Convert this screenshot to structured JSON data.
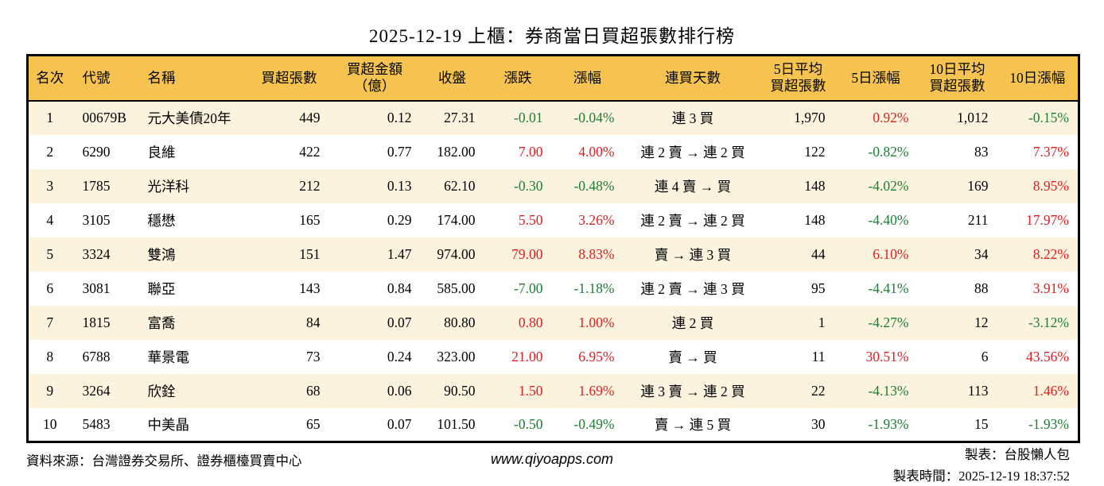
{
  "chart_data": {
    "type": "table",
    "title": "2025-12-19 上櫃：券商當日買超張數排行榜",
    "columns": [
      {
        "key": "rank",
        "label": "名次"
      },
      {
        "key": "code",
        "label": "代號"
      },
      {
        "key": "name",
        "label": "名稱"
      },
      {
        "key": "volume",
        "label": "買超張數"
      },
      {
        "key": "amount",
        "label": "買超金額",
        "label2": "（億）"
      },
      {
        "key": "close",
        "label": "收盤"
      },
      {
        "key": "change",
        "label": "漲跌"
      },
      {
        "key": "change_pct",
        "label": "漲幅"
      },
      {
        "key": "streak",
        "label": "連買天數"
      },
      {
        "key": "avg5",
        "label": "5日平均",
        "label2": "買超張數"
      },
      {
        "key": "pct5",
        "label": "5日漲幅"
      },
      {
        "key": "avg10",
        "label": "10日平均",
        "label2": "買超張數"
      },
      {
        "key": "pct10",
        "label": "10日漲幅"
      }
    ],
    "rows": [
      {
        "rank": "1",
        "code": "00679B",
        "name": "元大美債20年",
        "volume": "449",
        "amount": "0.12",
        "close": "27.31",
        "change": "-0.01",
        "change_pct": "-0.04%",
        "streak": "連 3 買",
        "avg5": "1,970",
        "pct5": "0.92%",
        "avg10": "1,012",
        "pct10": "-0.15%"
      },
      {
        "rank": "2",
        "code": "6290",
        "name": "良維",
        "volume": "422",
        "amount": "0.77",
        "close": "182.00",
        "change": "7.00",
        "change_pct": "4.00%",
        "streak": "連 2 賣 → 連 2 買",
        "avg5": "122",
        "pct5": "-0.82%",
        "avg10": "83",
        "pct10": "7.37%"
      },
      {
        "rank": "3",
        "code": "1785",
        "name": "光洋科",
        "volume": "212",
        "amount": "0.13",
        "close": "62.10",
        "change": "-0.30",
        "change_pct": "-0.48%",
        "streak": "連 4 賣 → 買",
        "avg5": "148",
        "pct5": "-4.02%",
        "avg10": "169",
        "pct10": "8.95%"
      },
      {
        "rank": "4",
        "code": "3105",
        "name": "穩懋",
        "volume": "165",
        "amount": "0.29",
        "close": "174.00",
        "change": "5.50",
        "change_pct": "3.26%",
        "streak": "連 2 賣 → 連 2 買",
        "avg5": "148",
        "pct5": "-4.40%",
        "avg10": "211",
        "pct10": "17.97%"
      },
      {
        "rank": "5",
        "code": "3324",
        "name": "雙鴻",
        "volume": "151",
        "amount": "1.47",
        "close": "974.00",
        "change": "79.00",
        "change_pct": "8.83%",
        "streak": "賣 → 連 3 買",
        "avg5": "44",
        "pct5": "6.10%",
        "avg10": "34",
        "pct10": "8.22%"
      },
      {
        "rank": "6",
        "code": "3081",
        "name": "聯亞",
        "volume": "143",
        "amount": "0.84",
        "close": "585.00",
        "change": "-7.00",
        "change_pct": "-1.18%",
        "streak": "連 2 賣 → 連 3 買",
        "avg5": "95",
        "pct5": "-4.41%",
        "avg10": "88",
        "pct10": "3.91%"
      },
      {
        "rank": "7",
        "code": "1815",
        "name": "富喬",
        "volume": "84",
        "amount": "0.07",
        "close": "80.80",
        "change": "0.80",
        "change_pct": "1.00%",
        "streak": "連 2 買",
        "avg5": "1",
        "pct5": "-4.27%",
        "avg10": "12",
        "pct10": "-3.12%"
      },
      {
        "rank": "8",
        "code": "6788",
        "name": "華景電",
        "volume": "73",
        "amount": "0.24",
        "close": "323.00",
        "change": "21.00",
        "change_pct": "6.95%",
        "streak": "賣 → 買",
        "avg5": "11",
        "pct5": "30.51%",
        "avg10": "6",
        "pct10": "43.56%"
      },
      {
        "rank": "9",
        "code": "3264",
        "name": "欣銓",
        "volume": "68",
        "amount": "0.06",
        "close": "90.50",
        "change": "1.50",
        "change_pct": "1.69%",
        "streak": "連 3 賣 → 連 2 買",
        "avg5": "22",
        "pct5": "-4.13%",
        "avg10": "113",
        "pct10": "1.46%"
      },
      {
        "rank": "10",
        "code": "5483",
        "name": "中美晶",
        "volume": "65",
        "amount": "0.07",
        "close": "101.50",
        "change": "-0.50",
        "change_pct": "-0.49%",
        "streak": "賣 → 連 5 買",
        "avg5": "30",
        "pct5": "-1.93%",
        "avg10": "15",
        "pct10": "-1.93%"
      }
    ]
  },
  "colors": {
    "header_bg": "#F6C350",
    "row_stripe_bg": "#FCF3DF",
    "up_red": "#DE2020",
    "down_green": "#1B7E33"
  },
  "footer": {
    "source": "資料來源：台灣證券交易所、證券櫃檯買賣中心",
    "website": "www.qiyoapps.com",
    "maker": "製表：台股懶人包",
    "made_at": "製表時間：2025-12-19 18:37:52"
  }
}
